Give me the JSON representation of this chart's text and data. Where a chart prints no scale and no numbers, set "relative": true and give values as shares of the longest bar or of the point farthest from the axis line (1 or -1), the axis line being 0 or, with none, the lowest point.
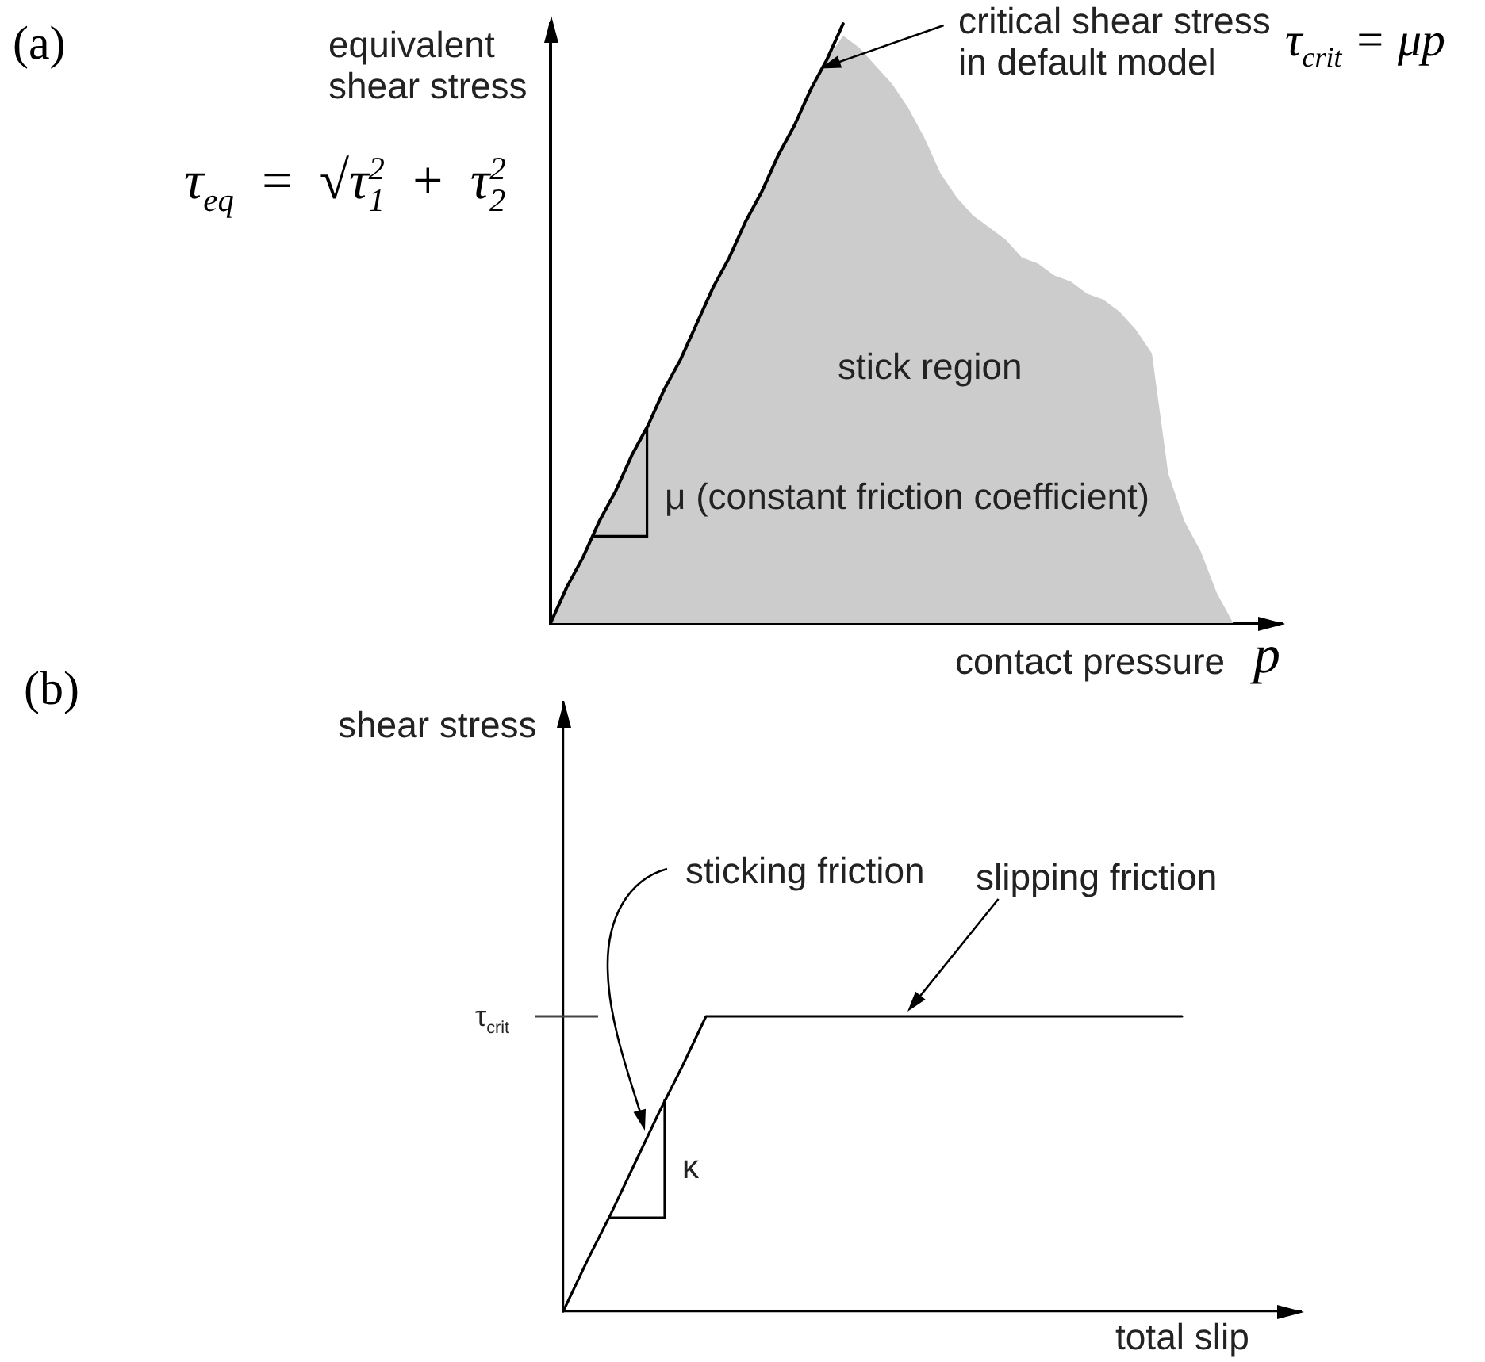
{
  "chart_data": [
    {
      "type": "line",
      "xlabel": "contact pressure",
      "ylabel": "equivalent shear stress",
      "relative": true,
      "marker": "none",
      "categories": [
        null,
        null,
        null,
        null,
        null,
        null,
        null,
        null,
        null,
        null,
        null,
        null,
        null,
        null,
        null,
        null,
        null,
        null,
        null,
        null,
        null,
        null,
        null,
        null,
        null,
        null,
        null,
        null,
        null,
        null,
        null,
        null,
        null,
        null,
        null,
        null,
        null,
        null,
        null,
        null,
        null,
        null,
        null,
        null,
        null,
        null
      ],
      "series": [
        {
          "type": "line",
          "color": "#000000",
          "values": [
            0,
            0.06,
            0.11,
            0.17,
            0.22,
            0.28,
            0.33,
            0.39,
            0.44,
            0.5,
            0.56,
            0.61,
            0.67,
            0.72,
            0.78,
            0.83,
            0.89,
            0.94,
            1,
            null,
            null,
            null,
            null,
            null,
            null,
            null,
            null,
            null,
            null,
            null,
            null,
            null,
            null,
            null,
            null,
            null,
            null,
            null,
            null,
            null,
            null,
            null,
            null,
            null,
            null,
            null
          ]
        },
        {
          "type": "area",
          "name": "stick region",
          "color": "#cccccc",
          "values": [
            0,
            0.06,
            0.11,
            0.17,
            0.22,
            0.28,
            0.33,
            0.39,
            0.44,
            0.5,
            0.56,
            0.61,
            0.67,
            0.72,
            0.78,
            0.83,
            0.89,
            0.94,
            0.98,
            0.96,
            0.93,
            0.9,
            0.86,
            0.81,
            0.75,
            0.71,
            0.68,
            0.66,
            0.64,
            0.61,
            0.6,
            0.58,
            0.57,
            0.55,
            0.54,
            0.52,
            0.49,
            0.45,
            0.25,
            0.17,
            0.12,
            0.05,
            0,
            null,
            null,
            null
          ]
        }
      ],
      "annotations": [
        "(a)",
        "τ$_{eq}$ = √τ$_{1}$$^{2}$ + τ$_{2}$$^{2}$",
        "critical shear stress in default model",
        "τ$_{crit}$ = μp",
        "μ (constant friction coefficient)",
        "p"
      ]
    },
    {
      "type": "line",
      "xlabel": "total slip",
      "ylabel": "shear stress",
      "relative": true,
      "marker": "none",
      "categories": [
        null,
        null,
        null,
        null,
        null,
        null,
        null,
        null,
        null,
        null,
        null,
        null,
        null,
        null,
        null,
        null,
        null,
        null,
        null,
        null,
        null,
        null,
        null,
        null,
        null,
        null,
        null,
        null,
        null,
        null,
        null,
        null
      ],
      "series": [
        {
          "color": "#000000",
          "values": [
            0,
            0.17,
            0.33,
            0.5,
            0.67,
            0.83,
            1,
            1,
            1,
            1,
            1,
            1,
            1,
            1,
            1,
            1,
            1,
            1,
            1,
            1,
            1,
            1,
            1,
            1,
            1,
            1,
            1,
            null,
            null,
            null,
            null,
            null
          ]
        }
      ],
      "ref_lines": [
        {
          "axis": "y",
          "value": 1,
          "label": "τ$_{crit}$"
        }
      ],
      "annotations": [
        "(b)",
        "sticking friction",
        "slipping friction",
        "κ"
      ]
    }
  ]
}
